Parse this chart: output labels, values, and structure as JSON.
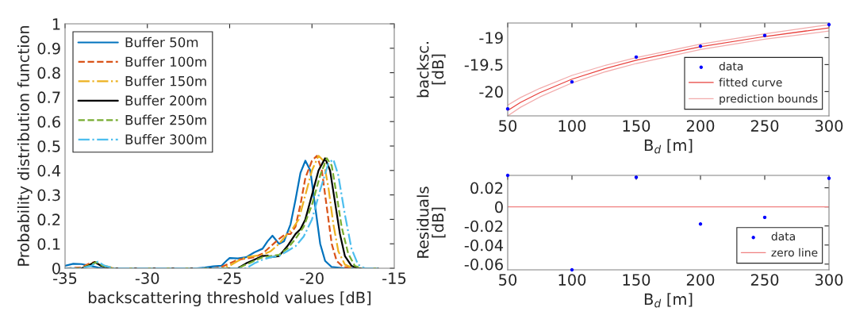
{
  "chart_data": [
    {
      "type": "line",
      "xlabel": "backscattering threshold values [dB]",
      "ylabel": "Probability distribution function",
      "xlim": [
        -35,
        -15
      ],
      "xticks": [
        -35,
        -30,
        -25,
        -20,
        -15
      ],
      "ylim": [
        0,
        1
      ],
      "yticks": [
        0,
        0.1,
        0.2,
        0.3,
        0.4,
        0.5,
        0.6,
        0.7,
        0.8,
        0.9,
        1
      ],
      "legend": "top left",
      "grid": false,
      "series": [
        {
          "name": "Buffer 50m",
          "color": "#0072bd",
          "line_style": "solid",
          "x": [
            -35,
            -34.5,
            -34,
            -33.5,
            -33,
            -32.5,
            -27,
            -26.5,
            -26,
            -25.5,
            -25.2,
            -25,
            -24.5,
            -24,
            -23.5,
            -23,
            -22.7,
            -22.4,
            -22,
            -21.7,
            -21.3,
            -21,
            -20.7,
            -20.4,
            -20.1,
            -19.8,
            -19.5,
            -19.2,
            -18.8,
            -18,
            -16
          ],
          "values": [
            0.01,
            0.018,
            0.017,
            0.01,
            0.003,
            0,
            0,
            0.003,
            0.008,
            0.01,
            0.03,
            0.042,
            0.04,
            0.045,
            0.065,
            0.08,
            0.11,
            0.133,
            0.1,
            0.11,
            0.18,
            0.28,
            0.39,
            0.44,
            0.4,
            0.25,
            0.1,
            0.03,
            0.005,
            0,
            0
          ]
        },
        {
          "name": "Buffer 100m",
          "color": "#d95319",
          "line_style": "dashed",
          "x": [
            -35,
            -34,
            -33.5,
            -33.2,
            -33,
            -32.5,
            -32,
            -26,
            -25.5,
            -25,
            -24.5,
            -24,
            -23.5,
            -23,
            -22.5,
            -22,
            -21.6,
            -21.3,
            -21,
            -20.7,
            -20.4,
            -20,
            -19.7,
            -19.4,
            -19.1,
            -18.8,
            -18.5,
            -18.1,
            -17.5,
            -16
          ],
          "values": [
            0,
            0.003,
            0.02,
            0.025,
            0.02,
            0.003,
            0,
            0,
            0.005,
            0.02,
            0.035,
            0.04,
            0.045,
            0.06,
            0.09,
            0.12,
            0.14,
            0.14,
            0.17,
            0.26,
            0.37,
            0.44,
            0.46,
            0.4,
            0.25,
            0.1,
            0.03,
            0.005,
            0,
            0
          ]
        },
        {
          "name": "Buffer 150m",
          "color": "#edb120",
          "line_style": "dashdot",
          "x": [
            -35,
            -34,
            -33.5,
            -33.1,
            -32.6,
            -32,
            -25.5,
            -25,
            -24.5,
            -24,
            -23.5,
            -23,
            -22.5,
            -22,
            -21.5,
            -21.2,
            -20.8,
            -20.4,
            -20,
            -19.6,
            -19.3,
            -19,
            -18.7,
            -18.4,
            -18,
            -17.5,
            -16
          ],
          "values": [
            0,
            0,
            0.015,
            0.025,
            0.01,
            0,
            0,
            0.01,
            0.03,
            0.045,
            0.05,
            0.055,
            0.07,
            0.1,
            0.14,
            0.16,
            0.2,
            0.3,
            0.4,
            0.46,
            0.44,
            0.33,
            0.18,
            0.07,
            0.015,
            0,
            0
          ]
        },
        {
          "name": "Buffer 200m",
          "color": "#000000",
          "line_style": "solid",
          "x": [
            -35,
            -34,
            -33.6,
            -33.2,
            -32.8,
            -32.3,
            -24.5,
            -24,
            -23.5,
            -23,
            -22.7,
            -22.5,
            -22,
            -21.5,
            -21,
            -20.7,
            -20.4,
            -20,
            -19.6,
            -19.2,
            -18.9,
            -18.6,
            -18.3,
            -18,
            -17.6,
            -17.2,
            -16
          ],
          "values": [
            0,
            0,
            0.01,
            0.025,
            0.01,
            0,
            0,
            0.02,
            0.035,
            0.05,
            0.052,
            0.045,
            0.05,
            0.09,
            0.14,
            0.16,
            0.2,
            0.3,
            0.4,
            0.45,
            0.4,
            0.27,
            0.14,
            0.05,
            0.01,
            0,
            0
          ]
        },
        {
          "name": "Buffer 250m",
          "color": "#77ac30",
          "line_style": "dashed",
          "x": [
            -35,
            -34,
            -33.5,
            -33.1,
            -32.7,
            -32.2,
            -24.5,
            -24,
            -23.5,
            -23,
            -22.5,
            -22,
            -21.5,
            -21,
            -20.5,
            -20,
            -19.5,
            -19.1,
            -18.8,
            -18.5,
            -18.2,
            -17.8,
            -17.4,
            -17,
            -16
          ],
          "values": [
            0,
            0,
            0.01,
            0.025,
            0.01,
            0,
            0,
            0.015,
            0.03,
            0.045,
            0.05,
            0.055,
            0.08,
            0.12,
            0.17,
            0.26,
            0.38,
            0.45,
            0.42,
            0.3,
            0.17,
            0.06,
            0.01,
            0,
            0
          ]
        },
        {
          "name": "Buffer 300m",
          "color": "#4dbeee",
          "line_style": "dashdot",
          "x": [
            -35,
            -34,
            -33.4,
            -33,
            -32.6,
            -32,
            -24,
            -23.5,
            -23,
            -22.5,
            -22,
            -21.5,
            -21,
            -20.5,
            -20,
            -19.5,
            -19,
            -18.7,
            -18.4,
            -18,
            -17.6,
            -17.2,
            -16.8,
            -16
          ],
          "values": [
            0,
            0,
            0.01,
            0.027,
            0.01,
            0,
            0,
            0.02,
            0.035,
            0.045,
            0.05,
            0.07,
            0.09,
            0.13,
            0.2,
            0.32,
            0.43,
            0.445,
            0.38,
            0.22,
            0.08,
            0.015,
            0,
            0
          ]
        }
      ]
    },
    {
      "type": "line",
      "xlabel": "B$_{d}$ [m]",
      "ylabel": "backsc.\n[dB]",
      "xlim": [
        50,
        300
      ],
      "xticks": [
        50,
        100,
        150,
        200,
        250,
        300
      ],
      "ylim": [
        -20.45,
        -18.73
      ],
      "yticks": [
        -20,
        -19.5,
        -19
      ],
      "legend": "bottom right",
      "grid": false,
      "series": [
        {
          "name": "data",
          "type": "scatter",
          "color": "#0000ff",
          "marker": "circle",
          "x": [
            50,
            100,
            150,
            200,
            250,
            300
          ],
          "values": [
            -20.32,
            -19.82,
            -19.36,
            -19.16,
            -18.96,
            -18.76
          ]
        },
        {
          "name": "fitted curve",
          "color": "#e8403c",
          "line_style": "solid",
          "x": [
            50,
            60,
            75,
            100,
            125,
            150,
            200,
            250,
            300
          ],
          "values": [
            -20.35,
            -20.2,
            -20.02,
            -19.77,
            -19.58,
            -19.42,
            -19.17,
            -18.98,
            -18.82
          ]
        },
        {
          "name": "prediction bounds",
          "color": "#f2aaaa",
          "line_style": "solid",
          "x": [
            50,
            60,
            75,
            100,
            125,
            150,
            200,
            250,
            300
          ],
          "values": [
            -20.25,
            -20.11,
            -19.94,
            -19.7,
            -19.52,
            -19.37,
            -19.12,
            -18.93,
            -18.76
          ]
        },
        {
          "color": "#f2aaaa",
          "line_style": "solid",
          "x": [
            50,
            60,
            75,
            100,
            125,
            150,
            200,
            250,
            300
          ],
          "values": [
            -20.45,
            -20.29,
            -20.1,
            -19.84,
            -19.64,
            -19.48,
            -19.22,
            -19.03,
            -18.88
          ]
        }
      ]
    },
    {
      "type": "scatter",
      "xlabel": "B$_{d}$ [m]",
      "ylabel": "Residuals\n[dB]",
      "xlim": [
        50,
        300
      ],
      "xticks": [
        50,
        100,
        150,
        200,
        250,
        300
      ],
      "ylim": [
        -0.066,
        0.033
      ],
      "yticks": [
        {
          "value": -0.06,
          "label": "-0.06"
        },
        {
          "value": -0.04,
          "label": "-0.04"
        },
        {
          "value": -0.02,
          "label": "-0.02"
        },
        0,
        0.02
      ],
      "legend": "bottom right",
      "grid": false,
      "series": [
        {
          "name": "data",
          "color": "#0000ff",
          "marker": "circle",
          "x": [
            50,
            100,
            150,
            200,
            250,
            300
          ],
          "values": [
            0.033,
            -0.066,
            0.031,
            -0.018,
            -0.011,
            0.03
          ]
        }
      ],
      "ref_lines": [
        {
          "axis": "y",
          "value": 0,
          "label": "zero line",
          "color": "#f08080",
          "line_style": "solid"
        }
      ]
    }
  ]
}
